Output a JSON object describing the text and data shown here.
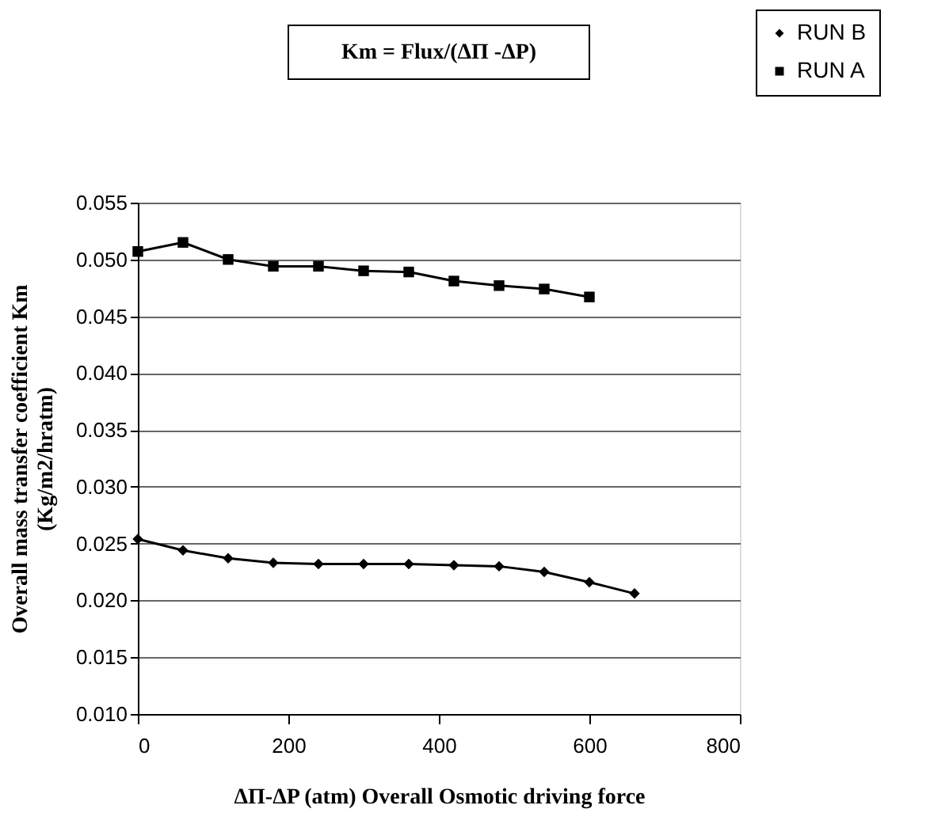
{
  "chart_data": {
    "type": "line",
    "xlabel": "ΔΠ-ΔP (atm) Overall Osmotic driving force",
    "ylabel": "Overall mass transfer coefficient Km\n(Kg/m2/hratm)",
    "annotations": [
      "Km = Flux/(ΔΠ -ΔP)"
    ],
    "xlim": [
      0,
      800
    ],
    "xticks": [
      0,
      200,
      400,
      600,
      800
    ],
    "ylim": [
      0.01,
      0.055
    ],
    "yticks": [
      {
        "value": 0.01,
        "label": "0.010"
      },
      {
        "value": 0.015,
        "label": "0.015"
      },
      {
        "value": 0.02,
        "label": "0.020"
      },
      {
        "value": 0.025,
        "label": "0.025"
      },
      {
        "value": 0.03,
        "label": "0.030"
      },
      {
        "value": 0.035,
        "label": "0.035"
      },
      {
        "value": 0.04,
        "label": "0.040"
      },
      {
        "value": 0.045,
        "label": "0.045"
      },
      {
        "value": 0.05,
        "label": "0.050"
      },
      {
        "value": 0.055,
        "label": "0.055"
      }
    ],
    "grid": "y",
    "legend": "top right",
    "line_style": "solid",
    "series": [
      {
        "name": "RUN B",
        "color": "#000000",
        "marker": "diamond",
        "x": [
          0,
          60,
          120,
          180,
          240,
          300,
          360,
          420,
          480,
          540,
          600,
          660
        ],
        "values": [
          0.0254,
          0.0244,
          0.0237,
          0.0233,
          0.0232,
          0.0232,
          0.0232,
          0.0231,
          0.023,
          0.0225,
          0.0216,
          0.0206
        ]
      },
      {
        "name": "RUN A",
        "color": "#000000",
        "marker": "square",
        "x": [
          0,
          60,
          120,
          180,
          240,
          300,
          360,
          420,
          480,
          540,
          600
        ],
        "values": [
          0.0507,
          0.0515,
          0.05,
          0.0494,
          0.0494,
          0.049,
          0.0489,
          0.0481,
          0.0477,
          0.0474,
          0.0467
        ]
      }
    ]
  }
}
